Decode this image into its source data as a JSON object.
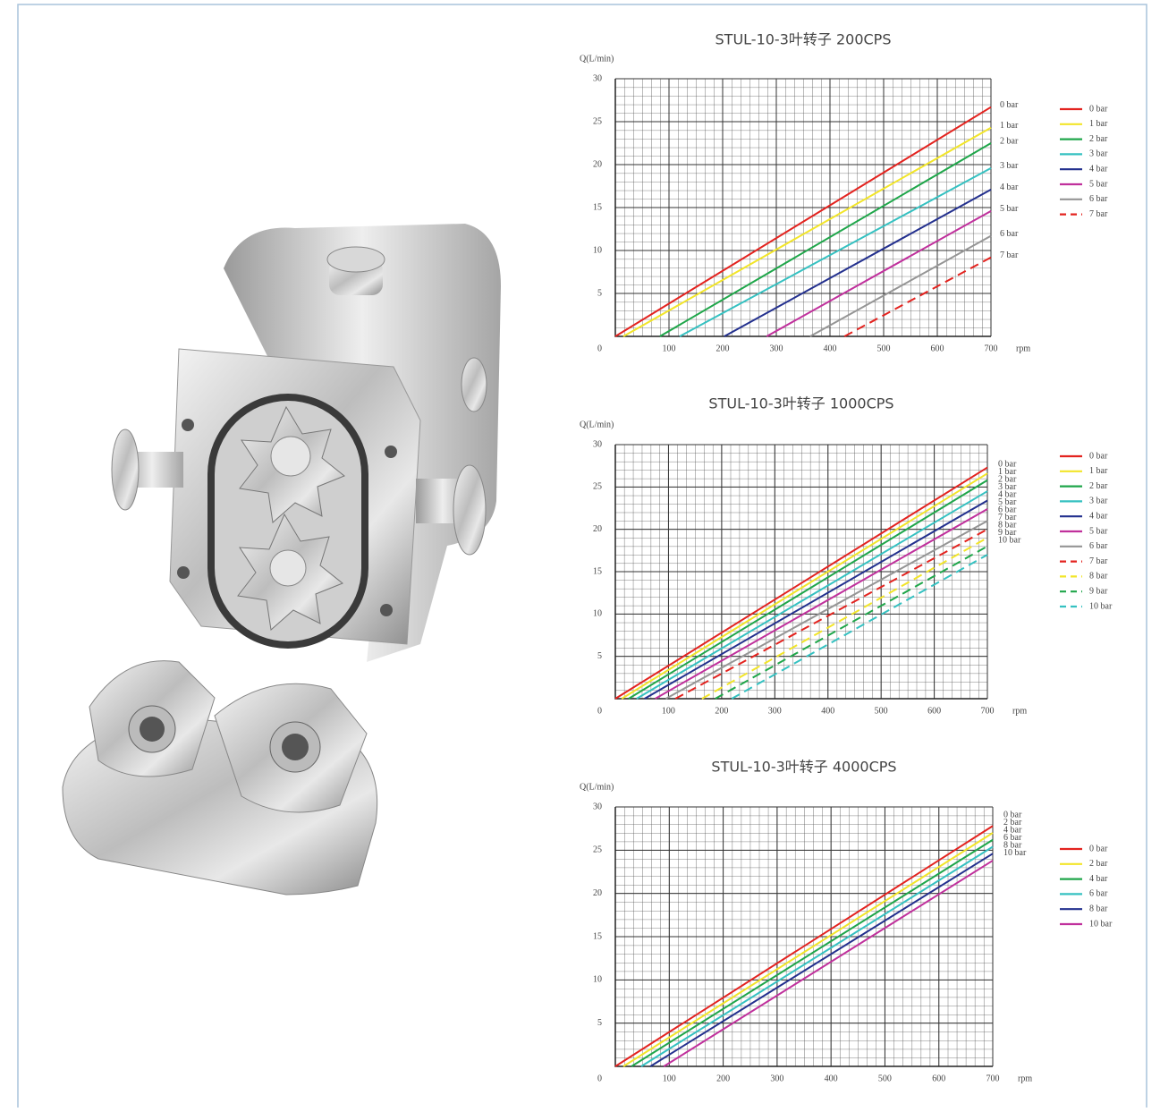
{
  "chart_data": [
    {
      "type": "line",
      "title": "STUL-10-3叶转子 200CPS",
      "y_label": "Q(L/min)",
      "x_label": "rpm",
      "xlim": [
        0,
        700
      ],
      "ylim": [
        0,
        30
      ],
      "xticks": [
        100,
        200,
        300,
        400,
        500,
        600,
        700
      ],
      "yticks": [
        0,
        5,
        10,
        15,
        20,
        25,
        30
      ],
      "grid": true,
      "series": [
        {
          "name": "0 bar",
          "color": "#e3231f",
          "x": [
            0,
            700
          ],
          "values": [
            0,
            26.7
          ]
        },
        {
          "name": "1 bar",
          "color": "#f2e529",
          "x": [
            15,
            700
          ],
          "values": [
            0,
            24.3
          ]
        },
        {
          "name": "2 bar",
          "color": "#1fa64a",
          "x": [
            83,
            700
          ],
          "values": [
            0,
            22.5
          ]
        },
        {
          "name": "3 bar",
          "color": "#35c1c1",
          "x": [
            120,
            700
          ],
          "values": [
            0,
            19.6
          ]
        },
        {
          "name": "4 bar",
          "color": "#23308e",
          "x": [
            203,
            700
          ],
          "values": [
            0,
            17.1
          ]
        },
        {
          "name": "5 bar",
          "color": "#c0309c",
          "x": [
            282,
            700
          ],
          "values": [
            0,
            14.6
          ]
        },
        {
          "name": "6 bar",
          "color": "#959595",
          "x": [
            363,
            700
          ],
          "values": [
            0,
            11.7
          ]
        },
        {
          "name": "7 bar",
          "color": "#e3231f",
          "dash": true,
          "x": [
            427,
            700
          ],
          "values": [
            0,
            9.2
          ]
        }
      ]
    },
    {
      "type": "line",
      "title": "STUL-10-3叶转子 1000CPS",
      "y_label": "Q(L/min)",
      "x_label": "rpm",
      "xlim": [
        0,
        700
      ],
      "ylim": [
        0,
        30
      ],
      "xticks": [
        100,
        200,
        300,
        400,
        500,
        600,
        700
      ],
      "yticks": [
        0,
        5,
        10,
        15,
        20,
        25,
        30
      ],
      "grid": true,
      "series": [
        {
          "name": "0 bar",
          "color": "#e3231f",
          "x": [
            0,
            700
          ],
          "values": [
            0,
            27.3
          ]
        },
        {
          "name": "1 bar",
          "color": "#f2e529",
          "x": [
            12,
            700
          ],
          "values": [
            0,
            26.6
          ]
        },
        {
          "name": "2 bar",
          "color": "#1fa64a",
          "x": [
            25,
            700
          ],
          "values": [
            0,
            25.8
          ]
        },
        {
          "name": "3 bar",
          "color": "#35c1c1",
          "x": [
            40,
            700
          ],
          "values": [
            0,
            24.5
          ]
        },
        {
          "name": "4 bar",
          "color": "#23308e",
          "x": [
            55,
            700
          ],
          "values": [
            0,
            23.4
          ]
        },
        {
          "name": "5 bar",
          "color": "#c0309c",
          "x": [
            75,
            700
          ],
          "values": [
            0,
            22.4
          ]
        },
        {
          "name": "6 bar",
          "color": "#959595",
          "x": [
            95,
            700
          ],
          "values": [
            0,
            21.0
          ]
        },
        {
          "name": "7 bar",
          "color": "#e3231f",
          "dash": true,
          "x": [
            113,
            700
          ],
          "values": [
            0,
            20.0
          ]
        },
        {
          "name": "8 bar",
          "color": "#f2e529",
          "dash": true,
          "x": [
            163,
            700
          ],
          "values": [
            0,
            19.0
          ]
        },
        {
          "name": "9 bar",
          "color": "#1fa64a",
          "dash": true,
          "x": [
            188,
            700
          ],
          "values": [
            0,
            18.0
          ]
        },
        {
          "name": "10 bar",
          "color": "#35c1c1",
          "dash": true,
          "x": [
            219,
            700
          ],
          "values": [
            0,
            17.0
          ]
        }
      ]
    },
    {
      "type": "line",
      "title": "STUL-10-3叶转子 4000CPS",
      "y_label": "Q(L/min)",
      "x_label": "rpm",
      "xlim": [
        0,
        700
      ],
      "ylim": [
        0,
        30
      ],
      "xticks": [
        100,
        200,
        300,
        400,
        500,
        600,
        700
      ],
      "yticks": [
        0,
        5,
        10,
        15,
        20,
        25,
        30
      ],
      "grid": true,
      "series": [
        {
          "name": "0 bar",
          "color": "#e3231f",
          "x": [
            0,
            700
          ],
          "values": [
            0,
            27.8
          ]
        },
        {
          "name": "2 bar",
          "color": "#f2e529",
          "x": [
            15,
            700
          ],
          "values": [
            0,
            27.0
          ]
        },
        {
          "name": "4 bar",
          "color": "#1fa64a",
          "x": [
            30,
            700
          ],
          "values": [
            0,
            26.2
          ]
        },
        {
          "name": "6 bar",
          "color": "#35c1c1",
          "x": [
            48,
            700
          ],
          "values": [
            0,
            25.4
          ]
        },
        {
          "name": "8 bar",
          "color": "#23308e",
          "x": [
            65,
            700
          ],
          "values": [
            0,
            24.6
          ]
        },
        {
          "name": "10 bar",
          "color": "#c0309c",
          "x": [
            90,
            700
          ],
          "values": [
            0,
            23.8
          ]
        }
      ]
    }
  ]
}
